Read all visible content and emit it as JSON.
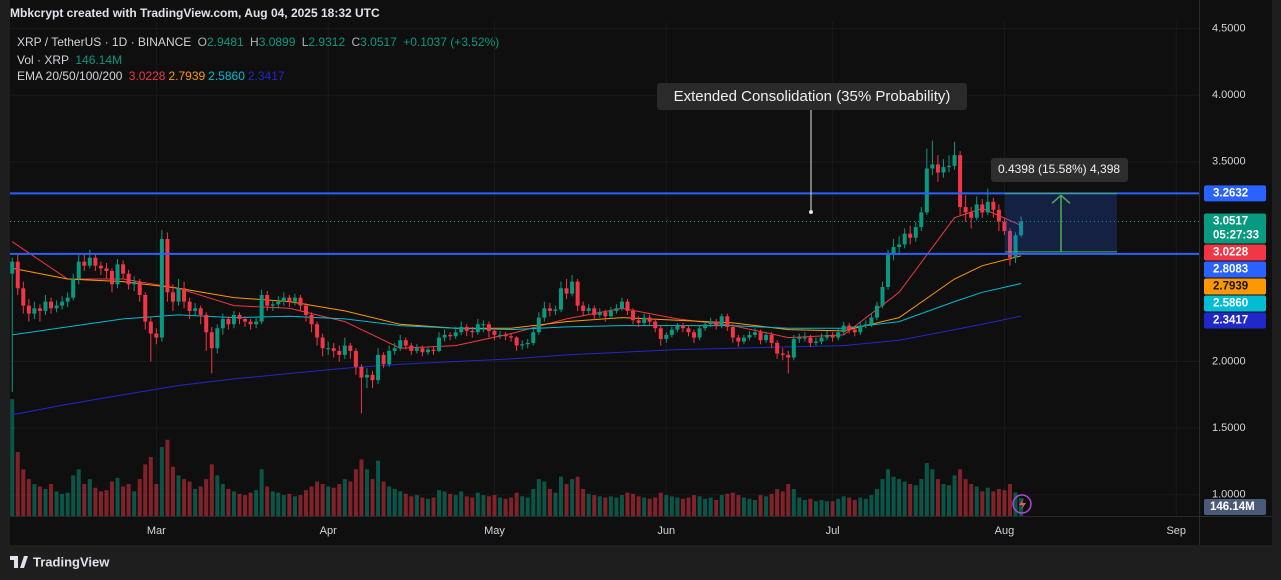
{
  "chart_data": {
    "type": "candlestick",
    "header": "Mbkcrypt created with TradingView.com, Aug 04, 2025 18:32 UTC",
    "symbol": "XRP / TetherUS · 1D · BINANCE",
    "ohlc_letters": [
      "O",
      "H",
      "L",
      "C"
    ],
    "change": "+0.1037 (+3.52%)",
    "volume_legend": "Vol · XRP",
    "volume_label": {
      "value": 146.14,
      "label": "146.14M"
    },
    "up_color": "#089981",
    "down_color": "#f23645",
    "candles": [
      [
        2.66,
        2.78,
        1.77,
        2.75
      ],
      [
        2.75,
        2.8,
        2.5,
        2.55
      ],
      [
        2.55,
        2.6,
        2.36,
        2.42
      ],
      [
        2.42,
        2.47,
        2.3,
        2.36
      ],
      [
        2.36,
        2.45,
        2.32,
        2.4
      ],
      [
        2.4,
        2.43,
        2.3,
        2.38
      ],
      [
        2.38,
        2.5,
        2.35,
        2.45
      ],
      [
        2.45,
        2.48,
        2.36,
        2.4
      ],
      [
        2.4,
        2.46,
        2.37,
        2.42
      ],
      [
        2.42,
        2.49,
        2.39,
        2.45
      ],
      [
        2.45,
        2.52,
        2.41,
        2.48
      ],
      [
        2.48,
        2.66,
        2.46,
        2.62
      ],
      [
        2.62,
        2.8,
        2.58,
        2.75
      ],
      [
        2.75,
        2.81,
        2.68,
        2.72
      ],
      [
        2.72,
        2.84,
        2.7,
        2.78
      ],
      [
        2.78,
        2.81,
        2.68,
        2.72
      ],
      [
        2.72,
        2.75,
        2.65,
        2.7
      ],
      [
        2.7,
        2.74,
        2.62,
        2.68
      ],
      [
        2.68,
        2.7,
        2.52,
        2.58
      ],
      [
        2.58,
        2.77,
        2.55,
        2.73
      ],
      [
        2.73,
        2.76,
        2.62,
        2.66
      ],
      [
        2.66,
        2.69,
        2.54,
        2.58
      ],
      [
        2.58,
        2.64,
        2.53,
        2.6
      ],
      [
        2.6,
        2.62,
        2.45,
        2.5
      ],
      [
        2.5,
        2.52,
        2.24,
        2.3
      ],
      [
        2.3,
        2.34,
        2.0,
        2.21
      ],
      [
        2.21,
        2.25,
        2.13,
        2.18
      ],
      [
        2.18,
        2.99,
        2.15,
        2.92
      ],
      [
        2.92,
        2.97,
        2.45,
        2.52
      ],
      [
        2.52,
        2.58,
        2.38,
        2.45
      ],
      [
        2.45,
        2.62,
        2.42,
        2.55
      ],
      [
        2.55,
        2.6,
        2.4,
        2.45
      ],
      [
        2.45,
        2.48,
        2.32,
        2.38
      ],
      [
        2.38,
        2.44,
        2.34,
        2.4
      ],
      [
        2.4,
        2.42,
        2.28,
        2.35
      ],
      [
        2.35,
        2.37,
        2.08,
        2.22
      ],
      [
        2.22,
        2.26,
        1.91,
        2.1
      ],
      [
        2.1,
        2.28,
        2.06,
        2.25
      ],
      [
        2.25,
        2.36,
        2.2,
        2.32
      ],
      [
        2.32,
        2.34,
        2.24,
        2.28
      ],
      [
        2.28,
        2.38,
        2.25,
        2.35
      ],
      [
        2.35,
        2.37,
        2.28,
        2.32
      ],
      [
        2.32,
        2.34,
        2.26,
        2.3
      ],
      [
        2.3,
        2.32,
        2.24,
        2.28
      ],
      [
        2.28,
        2.33,
        2.25,
        2.3
      ],
      [
        2.3,
        2.54,
        2.28,
        2.5
      ],
      [
        2.5,
        2.53,
        2.38,
        2.42
      ],
      [
        2.42,
        2.46,
        2.38,
        2.43
      ],
      [
        2.43,
        2.49,
        2.4,
        2.45
      ],
      [
        2.45,
        2.52,
        2.42,
        2.48
      ],
      [
        2.48,
        2.5,
        2.41,
        2.45
      ],
      [
        2.45,
        2.51,
        2.42,
        2.48
      ],
      [
        2.48,
        2.5,
        2.38,
        2.42
      ],
      [
        2.42,
        2.44,
        2.3,
        2.35
      ],
      [
        2.35,
        2.37,
        2.22,
        2.28
      ],
      [
        2.28,
        2.3,
        2.12,
        2.18
      ],
      [
        2.18,
        2.21,
        2.04,
        2.1
      ],
      [
        2.1,
        2.15,
        2.05,
        2.1
      ],
      [
        2.1,
        2.14,
        2.03,
        2.08
      ],
      [
        2.08,
        2.12,
        2.0,
        2.05
      ],
      [
        2.05,
        2.18,
        2.02,
        2.12
      ],
      [
        2.12,
        2.14,
        2.02,
        2.08
      ],
      [
        2.08,
        2.1,
        1.9,
        1.96
      ],
      [
        1.96,
        1.98,
        1.61,
        1.88
      ],
      [
        1.88,
        1.95,
        1.8,
        1.9
      ],
      [
        1.9,
        1.93,
        1.8,
        1.86
      ],
      [
        1.86,
        2.1,
        1.83,
        2.05
      ],
      [
        2.05,
        2.07,
        1.95,
        1.98
      ],
      [
        1.98,
        2.12,
        1.96,
        2.08
      ],
      [
        2.08,
        2.14,
        2.05,
        2.1
      ],
      [
        2.1,
        2.2,
        2.08,
        2.16
      ],
      [
        2.16,
        2.18,
        2.09,
        2.12
      ],
      [
        2.12,
        2.14,
        2.05,
        2.08
      ],
      [
        2.08,
        2.13,
        2.06,
        2.1
      ],
      [
        2.1,
        2.12,
        2.04,
        2.07
      ],
      [
        2.07,
        2.11,
        2.05,
        2.09
      ],
      [
        2.09,
        2.11,
        2.05,
        2.08
      ],
      [
        2.08,
        2.22,
        2.07,
        2.18
      ],
      [
        2.18,
        2.24,
        2.15,
        2.2
      ],
      [
        2.2,
        2.22,
        2.16,
        2.19
      ],
      [
        2.19,
        2.26,
        2.17,
        2.22
      ],
      [
        2.22,
        2.3,
        2.2,
        2.26
      ],
      [
        2.26,
        2.28,
        2.19,
        2.23
      ],
      [
        2.23,
        2.26,
        2.18,
        2.22
      ],
      [
        2.22,
        2.32,
        2.2,
        2.28
      ],
      [
        2.28,
        2.31,
        2.22,
        2.28
      ],
      [
        2.28,
        2.3,
        2.18,
        2.23
      ],
      [
        2.23,
        2.25,
        2.16,
        2.2
      ],
      [
        2.2,
        2.23,
        2.17,
        2.2
      ],
      [
        2.2,
        2.22,
        2.16,
        2.19
      ],
      [
        2.19,
        2.21,
        2.15,
        2.18
      ],
      [
        2.18,
        2.19,
        2.08,
        2.12
      ],
      [
        2.12,
        2.16,
        2.09,
        2.13
      ],
      [
        2.13,
        2.17,
        2.1,
        2.14
      ],
      [
        2.14,
        2.26,
        2.12,
        2.22
      ],
      [
        2.22,
        2.37,
        2.2,
        2.33
      ],
      [
        2.33,
        2.45,
        2.3,
        2.4
      ],
      [
        2.4,
        2.44,
        2.34,
        2.38
      ],
      [
        2.38,
        2.42,
        2.35,
        2.39
      ],
      [
        2.39,
        2.6,
        2.37,
        2.55
      ],
      [
        2.55,
        2.62,
        2.47,
        2.51
      ],
      [
        2.51,
        2.65,
        2.49,
        2.6
      ],
      [
        2.6,
        2.62,
        2.38,
        2.42
      ],
      [
        2.42,
        2.45,
        2.34,
        2.38
      ],
      [
        2.38,
        2.43,
        2.36,
        2.4
      ],
      [
        2.4,
        2.42,
        2.31,
        2.35
      ],
      [
        2.35,
        2.4,
        2.33,
        2.37
      ],
      [
        2.37,
        2.39,
        2.3,
        2.34
      ],
      [
        2.34,
        2.41,
        2.32,
        2.38
      ],
      [
        2.38,
        2.43,
        2.36,
        2.4
      ],
      [
        2.4,
        2.48,
        2.38,
        2.45
      ],
      [
        2.45,
        2.47,
        2.35,
        2.38
      ],
      [
        2.38,
        2.4,
        2.28,
        2.31
      ],
      [
        2.31,
        2.34,
        2.26,
        2.29
      ],
      [
        2.29,
        2.36,
        2.27,
        2.33
      ],
      [
        2.33,
        2.35,
        2.27,
        2.3
      ],
      [
        2.3,
        2.32,
        2.22,
        2.25
      ],
      [
        2.25,
        2.27,
        2.12,
        2.17
      ],
      [
        2.17,
        2.22,
        2.14,
        2.2
      ],
      [
        2.2,
        2.26,
        2.18,
        2.24
      ],
      [
        2.24,
        2.29,
        2.22,
        2.27
      ],
      [
        2.27,
        2.29,
        2.22,
        2.25
      ],
      [
        2.25,
        2.27,
        2.19,
        2.22
      ],
      [
        2.22,
        2.24,
        2.14,
        2.18
      ],
      [
        2.18,
        2.27,
        2.16,
        2.25
      ],
      [
        2.25,
        2.3,
        2.23,
        2.28
      ],
      [
        2.28,
        2.33,
        2.26,
        2.3
      ],
      [
        2.3,
        2.32,
        2.24,
        2.27
      ],
      [
        2.27,
        2.36,
        2.25,
        2.34
      ],
      [
        2.34,
        2.36,
        2.23,
        2.26
      ],
      [
        2.26,
        2.28,
        2.14,
        2.18
      ],
      [
        2.18,
        2.2,
        2.11,
        2.15
      ],
      [
        2.15,
        2.2,
        2.13,
        2.18
      ],
      [
        2.18,
        2.23,
        2.16,
        2.2
      ],
      [
        2.2,
        2.25,
        2.18,
        2.22
      ],
      [
        2.22,
        2.24,
        2.13,
        2.16
      ],
      [
        2.16,
        2.22,
        2.14,
        2.2
      ],
      [
        2.2,
        2.22,
        2.1,
        2.14
      ],
      [
        2.14,
        2.16,
        2.02,
        2.06
      ],
      [
        2.06,
        2.1,
        2.01,
        2.05
      ],
      [
        2.05,
        2.08,
        1.91,
        2.03
      ],
      [
        2.03,
        2.2,
        2.01,
        2.17
      ],
      [
        2.17,
        2.21,
        2.14,
        2.18
      ],
      [
        2.18,
        2.22,
        2.15,
        2.18
      ],
      [
        2.18,
        2.2,
        2.11,
        2.14
      ],
      [
        2.14,
        2.18,
        2.12,
        2.15
      ],
      [
        2.15,
        2.21,
        2.13,
        2.18
      ],
      [
        2.18,
        2.23,
        2.16,
        2.2
      ],
      [
        2.2,
        2.22,
        2.15,
        2.18
      ],
      [
        2.18,
        2.25,
        2.16,
        2.22
      ],
      [
        2.22,
        2.3,
        2.2,
        2.27
      ],
      [
        2.27,
        2.29,
        2.21,
        2.24
      ],
      [
        2.24,
        2.26,
        2.19,
        2.22
      ],
      [
        2.22,
        2.3,
        2.2,
        2.27
      ],
      [
        2.27,
        2.31,
        2.25,
        2.28
      ],
      [
        2.28,
        2.36,
        2.26,
        2.33
      ],
      [
        2.33,
        2.45,
        2.31,
        2.42
      ],
      [
        2.42,
        2.6,
        2.4,
        2.56
      ],
      [
        2.56,
        2.84,
        2.54,
        2.8
      ],
      [
        2.8,
        2.92,
        2.76,
        2.86
      ],
      [
        2.86,
        2.94,
        2.8,
        2.88
      ],
      [
        2.88,
        3.0,
        2.85,
        2.96
      ],
      [
        2.96,
        3.02,
        2.88,
        2.93
      ],
      [
        2.93,
        3.05,
        2.9,
        3.01
      ],
      [
        3.01,
        3.16,
        2.98,
        3.12
      ],
      [
        3.12,
        3.6,
        3.1,
        3.45
      ],
      [
        3.45,
        3.66,
        3.4,
        3.48
      ],
      [
        3.48,
        3.55,
        3.35,
        3.42
      ],
      [
        3.42,
        3.52,
        3.38,
        3.46
      ],
      [
        3.46,
        3.55,
        3.42,
        3.47
      ],
      [
        3.47,
        3.65,
        3.44,
        3.55
      ],
      [
        3.55,
        3.58,
        3.1,
        3.16
      ],
      [
        3.16,
        3.25,
        3.05,
        3.12
      ],
      [
        3.12,
        3.16,
        3.0,
        3.08
      ],
      [
        3.08,
        3.24,
        3.06,
        3.18
      ],
      [
        3.18,
        3.22,
        3.08,
        3.12
      ],
      [
        3.12,
        3.3,
        3.1,
        3.2
      ],
      [
        3.2,
        3.23,
        3.08,
        3.14
      ],
      [
        3.14,
        3.18,
        2.98,
        3.05
      ],
      [
        3.05,
        3.08,
        2.95,
        2.98
      ],
      [
        2.98,
        3.0,
        2.72,
        2.78
      ],
      [
        2.78,
        2.97,
        2.74,
        2.9481
      ],
      [
        2.9481,
        3.0899,
        2.9312,
        3.0517
      ]
    ],
    "volume": [
      950,
      520,
      380,
      300,
      260,
      240,
      220,
      260,
      200,
      180,
      190,
      330,
      380,
      260,
      300,
      230,
      200,
      210,
      280,
      310,
      240,
      260,
      200,
      300,
      420,
      480,
      260,
      560,
      620,
      400,
      330,
      300,
      280,
      220,
      240,
      300,
      420,
      330,
      260,
      220,
      200,
      180,
      170,
      190,
      210,
      380,
      240,
      200,
      190,
      170,
      180,
      160,
      170,
      210,
      240,
      280,
      260,
      240,
      230,
      260,
      300,
      280,
      380,
      460,
      380,
      300,
      450,
      280,
      240,
      220,
      200,
      180,
      160,
      170,
      150,
      140,
      150,
      210,
      200,
      180,
      170,
      200,
      160,
      150,
      190,
      170,
      160,
      170,
      150,
      140,
      150,
      190,
      160,
      150,
      220,
      300,
      280,
      220,
      190,
      320,
      260,
      300,
      320,
      220,
      180,
      170,
      160,
      150,
      160,
      150,
      170,
      190,
      180,
      160,
      150,
      140,
      150,
      190,
      170,
      160,
      150,
      140,
      150,
      170,
      160,
      140,
      150,
      130,
      170,
      180,
      190,
      170,
      150,
      140,
      130,
      170,
      160,
      180,
      220,
      200,
      260,
      220,
      150,
      130,
      140,
      120,
      130,
      120,
      120,
      140,
      160,
      150,
      130,
      150,
      140,
      170,
      220,
      300,
      380,
      320,
      300,
      280,
      260,
      250,
      300,
      430,
      380,
      300,
      260,
      250,
      330,
      380,
      300,
      260,
      240,
      200,
      230,
      200,
      220,
      210,
      260,
      190,
      146.14
    ],
    "ema": {
      "label": "EMA 20/50/100/200",
      "x": [
        0,
        10,
        20,
        30,
        40,
        50,
        60,
        70,
        80,
        90,
        100,
        110,
        120,
        130,
        140,
        150,
        160,
        170,
        175,
        182
      ],
      "series": [
        {
          "color": "#f23645",
          "last": 3.0228,
          "values": [
            2.9,
            2.62,
            2.62,
            2.55,
            2.42,
            2.4,
            2.3,
            2.1,
            2.12,
            2.21,
            2.32,
            2.4,
            2.32,
            2.27,
            2.18,
            2.2,
            2.52,
            3.08,
            3.15,
            3.0228
          ]
        },
        {
          "color": "#ff9800",
          "last": 2.7939,
          "values": [
            2.7,
            2.62,
            2.6,
            2.55,
            2.48,
            2.45,
            2.38,
            2.28,
            2.25,
            2.25,
            2.3,
            2.33,
            2.31,
            2.29,
            2.24,
            2.23,
            2.33,
            2.62,
            2.72,
            2.7939
          ]
        },
        {
          "color": "#00bcd4",
          "last": {
            "value": 2.586,
            "label": "2.5860"
          },
          "values": [
            2.2,
            2.26,
            2.32,
            2.35,
            2.33,
            2.34,
            2.32,
            2.27,
            2.25,
            2.24,
            2.26,
            2.27,
            2.27,
            2.27,
            2.25,
            2.25,
            2.3,
            2.45,
            2.52,
            2.586
          ]
        },
        {
          "color": "#2128c9",
          "last": 2.3417,
          "values": [
            1.6,
            1.68,
            1.75,
            1.82,
            1.87,
            1.91,
            1.95,
            1.98,
            2.0,
            2.02,
            2.05,
            2.07,
            2.09,
            2.1,
            2.11,
            2.12,
            2.16,
            2.24,
            2.28,
            2.3417
          ]
        }
      ]
    },
    "levels": [
      {
        "value": 3.2632,
        "color": "#2962ff"
      },
      {
        "value": 2.8083,
        "color": "#2962ff"
      }
    ],
    "current_countdown": "05:27:33",
    "annotation": "Extended Consolidation (35% Probability)",
    "measure": {
      "label": "0.4398 (15.58%) 4,398",
      "from": 2.8234,
      "to": 3.2632,
      "color": "#4caf50"
    },
    "xlim": [
      -0.4,
      214.1
    ],
    "xticks": [
      {
        "value": 26,
        "label": "Mar"
      },
      {
        "value": 57,
        "label": "Apr"
      },
      {
        "value": 87,
        "label": "May"
      },
      {
        "value": 118,
        "label": "Jun"
      },
      {
        "value": 148,
        "label": "Jul"
      },
      {
        "value": 179,
        "label": "Aug"
      },
      {
        "value": 210,
        "label": "Sep"
      }
    ],
    "ylim": [
      0.84,
      4.55
    ],
    "yticks": [
      {
        "value": 4.5,
        "label": "4.5000"
      },
      {
        "value": 4.0,
        "label": "4.0000"
      },
      {
        "value": 3.5,
        "label": "3.5000"
      },
      {
        "value": 2.0,
        "label": "2.0000"
      },
      {
        "value": 1.5,
        "label": "1.5000"
      },
      {
        "value": 1.0,
        "label": "1.0000"
      }
    ],
    "grid": true,
    "brand": "TradingView"
  }
}
